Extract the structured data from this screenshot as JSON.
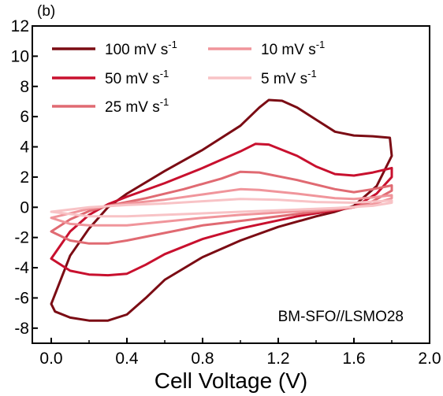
{
  "chart_data": {
    "type": "line",
    "panel_label": "(b)",
    "xlabel": "Cell Voltage (V)",
    "ylabel": "",
    "xlim": [
      -0.1,
      2.0
    ],
    "ylim": [
      -9,
      12
    ],
    "x_ticks": [
      "0.0",
      "0.4",
      "0.8",
      "1.2",
      "1.6",
      "2.0"
    ],
    "y_ticks": [
      "-8",
      "-6",
      "-4",
      "-2",
      "0",
      "2",
      "4",
      "6",
      "8",
      "10",
      "12"
    ],
    "annotation": "BM-SFO//LSMO28",
    "legend_position": "top-left",
    "series": [
      {
        "name": "100 mV s",
        "name_sup": "-1",
        "color": "#7b0c14",
        "upper": [
          [
            0.0,
            -6.4
          ],
          [
            0.1,
            -3.2
          ],
          [
            0.2,
            -1.4
          ],
          [
            0.3,
            0.0
          ],
          [
            0.4,
            0.9
          ],
          [
            0.6,
            2.4
          ],
          [
            0.8,
            3.8
          ],
          [
            1.0,
            5.4
          ],
          [
            1.1,
            6.6
          ],
          [
            1.15,
            7.1
          ],
          [
            1.22,
            7.05
          ],
          [
            1.3,
            6.6
          ],
          [
            1.4,
            5.8
          ],
          [
            1.5,
            5.0
          ],
          [
            1.6,
            4.75
          ],
          [
            1.7,
            4.7
          ],
          [
            1.79,
            4.6
          ]
        ],
        "lower": [
          [
            1.8,
            3.4
          ],
          [
            1.72,
            1.4
          ],
          [
            1.6,
            0.1
          ],
          [
            1.5,
            -0.3
          ],
          [
            1.4,
            -0.6
          ],
          [
            1.2,
            -1.3
          ],
          [
            1.0,
            -2.2
          ],
          [
            0.8,
            -3.3
          ],
          [
            0.6,
            -4.8
          ],
          [
            0.5,
            -6.0
          ],
          [
            0.4,
            -7.1
          ],
          [
            0.3,
            -7.5
          ],
          [
            0.2,
            -7.5
          ],
          [
            0.1,
            -7.3
          ],
          [
            0.02,
            -6.9
          ],
          [
            0.0,
            -6.4
          ]
        ]
      },
      {
        "name": "50 mV s",
        "name_sup": "-1",
        "color": "#c8102e",
        "upper": [
          [
            0.0,
            -3.4
          ],
          [
            0.1,
            -1.6
          ],
          [
            0.2,
            -0.5
          ],
          [
            0.3,
            0.2
          ],
          [
            0.4,
            0.7
          ],
          [
            0.6,
            1.6
          ],
          [
            0.8,
            2.6
          ],
          [
            1.0,
            3.7
          ],
          [
            1.08,
            4.2
          ],
          [
            1.15,
            4.15
          ],
          [
            1.3,
            3.4
          ],
          [
            1.4,
            2.7
          ],
          [
            1.5,
            2.2
          ],
          [
            1.6,
            2.1
          ],
          [
            1.7,
            2.3
          ],
          [
            1.8,
            2.6
          ]
        ],
        "lower": [
          [
            1.8,
            2.0
          ],
          [
            1.72,
            0.9
          ],
          [
            1.6,
            0.0
          ],
          [
            1.5,
            -0.2
          ],
          [
            1.3,
            -0.6
          ],
          [
            1.0,
            -1.4
          ],
          [
            0.8,
            -2.1
          ],
          [
            0.6,
            -3.1
          ],
          [
            0.5,
            -3.8
          ],
          [
            0.4,
            -4.4
          ],
          [
            0.3,
            -4.5
          ],
          [
            0.2,
            -4.45
          ],
          [
            0.1,
            -4.2
          ],
          [
            0.0,
            -3.4
          ]
        ]
      },
      {
        "name": "25 mV s",
        "name_sup": "-1",
        "color": "#e06a72",
        "upper": [
          [
            0.0,
            -1.6
          ],
          [
            0.1,
            -0.8
          ],
          [
            0.2,
            -0.25
          ],
          [
            0.3,
            0.1
          ],
          [
            0.5,
            0.6
          ],
          [
            0.7,
            1.2
          ],
          [
            0.9,
            1.9
          ],
          [
            1.0,
            2.35
          ],
          [
            1.1,
            2.3
          ],
          [
            1.3,
            1.8
          ],
          [
            1.5,
            1.2
          ],
          [
            1.6,
            1.0
          ],
          [
            1.7,
            1.2
          ],
          [
            1.8,
            1.45
          ]
        ],
        "lower": [
          [
            1.8,
            1.1
          ],
          [
            1.7,
            0.4
          ],
          [
            1.6,
            0.0
          ],
          [
            1.4,
            -0.3
          ],
          [
            1.2,
            -0.6
          ],
          [
            1.0,
            -0.9
          ],
          [
            0.8,
            -1.2
          ],
          [
            0.6,
            -1.7
          ],
          [
            0.4,
            -2.2
          ],
          [
            0.3,
            -2.4
          ],
          [
            0.2,
            -2.4
          ],
          [
            0.1,
            -2.2
          ],
          [
            0.0,
            -1.6
          ]
        ]
      },
      {
        "name": "10 mV s",
        "name_sup": "-1",
        "color": "#f0959b",
        "upper": [
          [
            0.0,
            -0.7
          ],
          [
            0.2,
            -0.1
          ],
          [
            0.4,
            0.25
          ],
          [
            0.6,
            0.5
          ],
          [
            0.8,
            0.85
          ],
          [
            1.0,
            1.2
          ],
          [
            1.1,
            1.15
          ],
          [
            1.3,
            0.9
          ],
          [
            1.5,
            0.6
          ],
          [
            1.6,
            0.55
          ],
          [
            1.7,
            0.65
          ],
          [
            1.8,
            0.8
          ]
        ],
        "lower": [
          [
            1.8,
            0.6
          ],
          [
            1.7,
            0.2
          ],
          [
            1.6,
            0.0
          ],
          [
            1.4,
            -0.2
          ],
          [
            1.2,
            -0.35
          ],
          [
            1.0,
            -0.5
          ],
          [
            0.8,
            -0.7
          ],
          [
            0.6,
            -0.95
          ],
          [
            0.4,
            -1.2
          ],
          [
            0.2,
            -1.2
          ],
          [
            0.1,
            -1.1
          ],
          [
            0.0,
            -0.7
          ]
        ]
      },
      {
        "name": "5 mV s",
        "name_sup": "-1",
        "color": "#f8c3c6",
        "upper": [
          [
            0.0,
            -0.3
          ],
          [
            0.2,
            0.0
          ],
          [
            0.4,
            0.15
          ],
          [
            0.6,
            0.25
          ],
          [
            0.8,
            0.4
          ],
          [
            1.0,
            0.55
          ],
          [
            1.2,
            0.5
          ],
          [
            1.4,
            0.35
          ],
          [
            1.6,
            0.3
          ],
          [
            1.8,
            0.45
          ]
        ],
        "lower": [
          [
            1.8,
            0.3
          ],
          [
            1.7,
            0.1
          ],
          [
            1.5,
            -0.05
          ],
          [
            1.3,
            -0.15
          ],
          [
            1.0,
            -0.3
          ],
          [
            0.8,
            -0.4
          ],
          [
            0.6,
            -0.5
          ],
          [
            0.4,
            -0.6
          ],
          [
            0.2,
            -0.6
          ],
          [
            0.0,
            -0.3
          ]
        ]
      }
    ]
  }
}
